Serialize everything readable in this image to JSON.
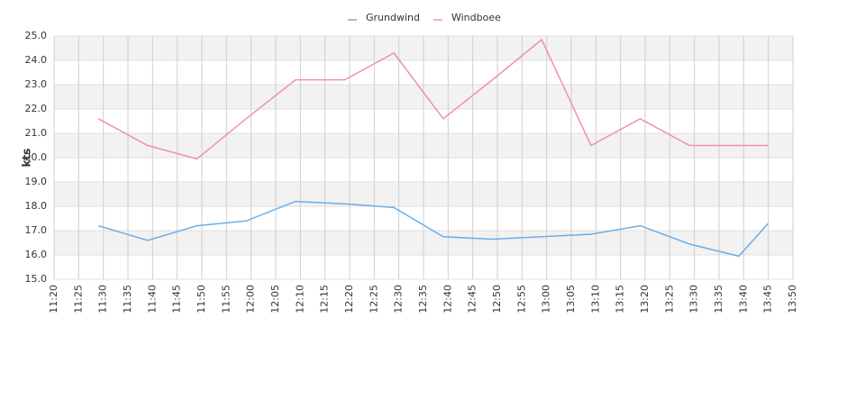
{
  "chart_data": {
    "type": "line",
    "y_label": "kts",
    "x": [
      "11:29",
      "11:39",
      "11:49",
      "11:59",
      "12:09",
      "12:19",
      "12:29",
      "12:39",
      "12:49",
      "12:59",
      "13:09",
      "13:19",
      "13:29",
      "13:39",
      "13:45"
    ],
    "series": [
      {
        "name": "Grundwind",
        "color": "#6aaee8",
        "values": [
          17.2,
          16.6,
          17.2,
          17.4,
          18.2,
          18.1,
          17.95,
          16.75,
          16.65,
          16.75,
          16.85,
          17.2,
          16.45,
          15.95,
          17.3
        ]
      },
      {
        "name": "Windboee",
        "color": "#f28cbf",
        "values": [
          21.6,
          20.5,
          19.95,
          21.6,
          23.2,
          23.2,
          24.3,
          21.6,
          23.2,
          24.85,
          20.5,
          21.6,
          20.5,
          20.5,
          20.5
        ]
      }
    ],
    "xlim": [
      "11:20",
      "13:50"
    ],
    "xticks": [
      "11:20",
      "11:25",
      "11:30",
      "11:35",
      "11:40",
      "11:45",
      "11:50",
      "11:55",
      "12:00",
      "12:05",
      "12:10",
      "12:15",
      "12:20",
      "12:25",
      "12:30",
      "12:35",
      "12:40",
      "12:45",
      "12:50",
      "12:55",
      "13:00",
      "13:05",
      "13:10",
      "13:15",
      "13:20",
      "13:25",
      "13:30",
      "13:35",
      "13:40",
      "13:45",
      "13:50"
    ],
    "ylim": [
      15,
      25
    ],
    "yticks": [
      {
        "value": 15,
        "label": "15.0"
      },
      {
        "value": 16,
        "label": "16.0"
      },
      {
        "value": 17,
        "label": "17.0"
      },
      {
        "value": 18,
        "label": "18.0"
      },
      {
        "value": 19,
        "label": "19.0"
      },
      {
        "value": 20,
        "label": "20.0"
      },
      {
        "value": 21,
        "label": "21.0"
      },
      {
        "value": 22,
        "label": "22.0"
      },
      {
        "value": 23,
        "label": "23.0"
      },
      {
        "value": 24,
        "label": "24.0"
      },
      {
        "value": 25,
        "label": "25.0"
      }
    ],
    "grid": true,
    "legend": "top"
  }
}
